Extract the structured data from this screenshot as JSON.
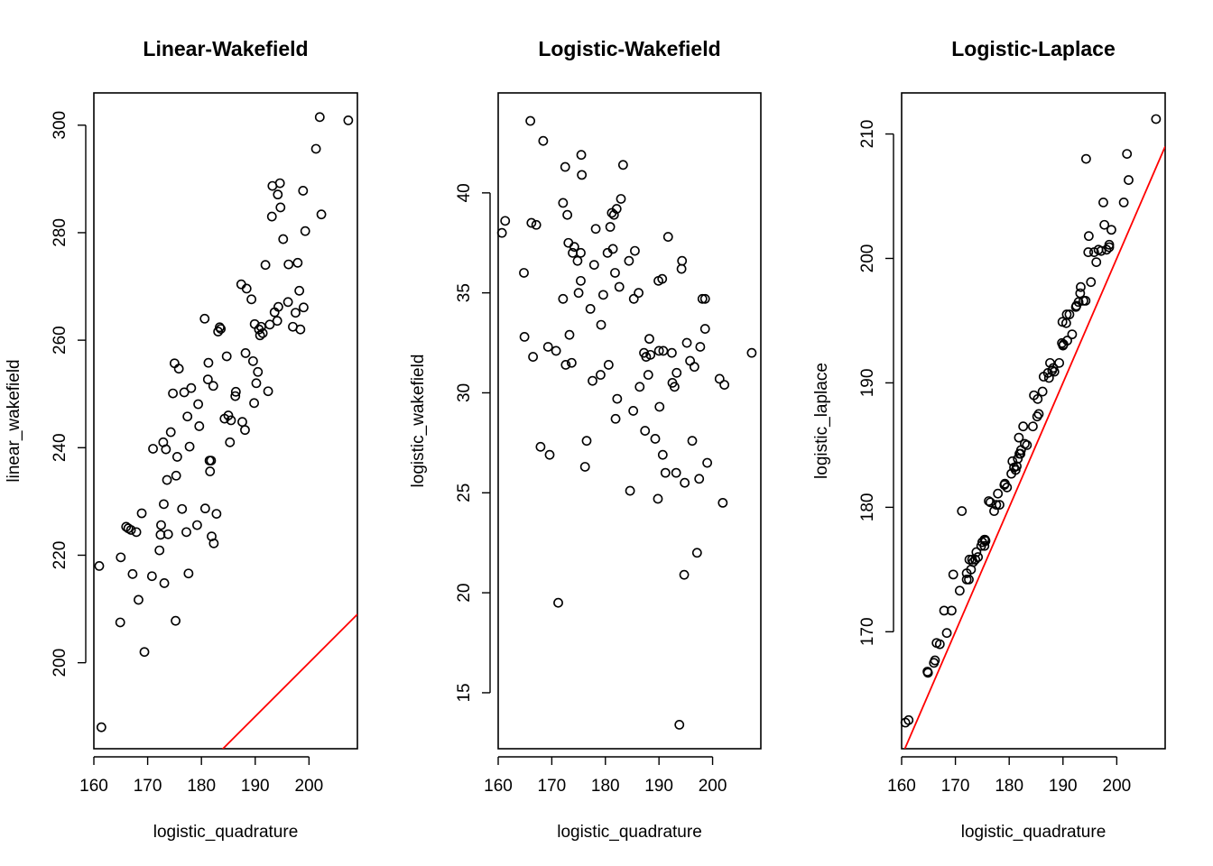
{
  "chart_data": [
    {
      "type": "scatter",
      "title": "Linear-Wakefield",
      "xlabel": "logistic_quadrature",
      "ylabel": "linear_wakefield",
      "xlim": [
        160,
        209
      ],
      "ylim": [
        184,
        306
      ],
      "xticks": [
        160,
        170,
        180,
        190,
        200
      ],
      "yticks": [
        200,
        220,
        240,
        260,
        280,
        300
      ],
      "reference_line": {
        "slope": 1,
        "intercept": 0,
        "color": "#ff0000"
      },
      "points": [
        [
          161.0,
          218.0
        ],
        [
          161.4,
          188.0
        ],
        [
          164.9,
          207.5
        ],
        [
          165.0,
          219.6
        ],
        [
          166.0,
          225.3
        ],
        [
          166.4,
          225.0
        ],
        [
          166.9,
          224.7
        ],
        [
          167.2,
          216.5
        ],
        [
          167.9,
          224.3
        ],
        [
          168.3,
          211.7
        ],
        [
          168.9,
          227.8
        ],
        [
          169.4,
          202.0
        ],
        [
          170.8,
          216.1
        ],
        [
          171.0,
          239.8
        ],
        [
          172.2,
          220.9
        ],
        [
          172.4,
          223.8
        ],
        [
          172.5,
          225.6
        ],
        [
          172.9,
          241.0
        ],
        [
          173.0,
          229.5
        ],
        [
          173.1,
          214.8
        ],
        [
          173.4,
          239.7
        ],
        [
          173.6,
          234.0
        ],
        [
          173.8,
          223.9
        ],
        [
          174.3,
          242.9
        ],
        [
          174.7,
          250.1
        ],
        [
          175.0,
          255.7
        ],
        [
          175.2,
          207.8
        ],
        [
          175.3,
          234.8
        ],
        [
          175.5,
          238.3
        ],
        [
          175.8,
          254.7
        ],
        [
          176.4,
          228.6
        ],
        [
          176.8,
          250.3
        ],
        [
          177.2,
          224.3
        ],
        [
          177.4,
          245.8
        ],
        [
          177.6,
          216.6
        ],
        [
          177.8,
          240.2
        ],
        [
          178.1,
          251.1
        ],
        [
          179.2,
          225.6
        ],
        [
          179.4,
          248.1
        ],
        [
          179.6,
          244.0
        ],
        [
          180.6,
          264.0
        ],
        [
          180.7,
          228.7
        ],
        [
          181.2,
          252.7
        ],
        [
          181.3,
          255.8
        ],
        [
          181.5,
          237.6
        ],
        [
          181.6,
          235.6
        ],
        [
          181.8,
          237.6
        ],
        [
          181.9,
          223.5
        ],
        [
          182.2,
          251.5
        ],
        [
          182.3,
          222.2
        ],
        [
          182.8,
          227.7
        ],
        [
          183.1,
          261.6
        ],
        [
          183.4,
          262.4
        ],
        [
          183.6,
          262.1
        ],
        [
          184.3,
          245.4
        ],
        [
          184.7,
          257.0
        ],
        [
          185.0,
          246.0
        ],
        [
          185.3,
          241.0
        ],
        [
          185.5,
          245.1
        ],
        [
          186.3,
          249.6
        ],
        [
          186.4,
          250.4
        ],
        [
          187.4,
          270.4
        ],
        [
          187.6,
          244.8
        ],
        [
          188.1,
          243.3
        ],
        [
          188.2,
          257.6
        ],
        [
          188.4,
          269.6
        ],
        [
          189.3,
          267.6
        ],
        [
          189.6,
          256.1
        ],
        [
          189.8,
          248.3
        ],
        [
          189.9,
          263.0
        ],
        [
          190.2,
          252.0
        ],
        [
          190.5,
          254.1
        ],
        [
          190.7,
          262.0
        ],
        [
          190.9,
          260.9
        ],
        [
          191.1,
          262.5
        ],
        [
          191.4,
          261.3
        ],
        [
          191.9,
          274.0
        ],
        [
          192.4,
          250.5
        ],
        [
          192.7,
          262.9
        ],
        [
          193.1,
          283.0
        ],
        [
          193.2,
          288.7
        ],
        [
          193.6,
          265.2
        ],
        [
          194.1,
          263.6
        ],
        [
          194.2,
          287.1
        ],
        [
          194.3,
          266.2
        ],
        [
          194.6,
          289.2
        ],
        [
          194.7,
          284.7
        ],
        [
          195.2,
          278.8
        ],
        [
          196.1,
          267.1
        ],
        [
          196.2,
          274.1
        ],
        [
          197.0,
          262.5
        ],
        [
          197.5,
          265.1
        ],
        [
          197.9,
          274.4
        ],
        [
          198.2,
          269.2
        ],
        [
          198.4,
          262.0
        ],
        [
          198.9,
          287.8
        ],
        [
          199.0,
          266.1
        ],
        [
          199.3,
          280.3
        ],
        [
          201.3,
          295.6
        ],
        [
          202.0,
          301.5
        ],
        [
          202.3,
          283.4
        ],
        [
          207.3,
          300.9
        ]
      ]
    },
    {
      "type": "scatter",
      "title": "Logistic-Wakefield",
      "xlabel": "logistic_quadrature",
      "ylabel": "logistic_wakefield",
      "xlim": [
        160,
        209
      ],
      "ylim": [
        12.2,
        45.0
      ],
      "xticks": [
        160,
        170,
        180,
        190,
        200
      ],
      "yticks": [
        15,
        20,
        25,
        30,
        35,
        40
      ],
      "points": [
        [
          160.7,
          38.0
        ],
        [
          161.3,
          38.6
        ],
        [
          164.8,
          36.0
        ],
        [
          164.9,
          32.8
        ],
        [
          166.0,
          43.6
        ],
        [
          166.2,
          38.5
        ],
        [
          166.5,
          31.8
        ],
        [
          167.1,
          38.4
        ],
        [
          167.9,
          27.3
        ],
        [
          168.4,
          42.6
        ],
        [
          169.3,
          32.3
        ],
        [
          169.6,
          26.9
        ],
        [
          170.8,
          32.1
        ],
        [
          171.2,
          19.5
        ],
        [
          172.1,
          34.7
        ],
        [
          172.1,
          39.5
        ],
        [
          172.5,
          41.3
        ],
        [
          172.6,
          31.4
        ],
        [
          172.9,
          38.9
        ],
        [
          173.1,
          37.5
        ],
        [
          173.3,
          32.9
        ],
        [
          173.7,
          31.5
        ],
        [
          173.9,
          37.0
        ],
        [
          174.2,
          37.3
        ],
        [
          174.8,
          36.6
        ],
        [
          175.0,
          35.0
        ],
        [
          175.4,
          35.6
        ],
        [
          175.4,
          37.0
        ],
        [
          175.5,
          41.9
        ],
        [
          175.6,
          40.9
        ],
        [
          176.2,
          26.3
        ],
        [
          176.5,
          27.6
        ],
        [
          177.2,
          34.2
        ],
        [
          177.6,
          30.6
        ],
        [
          177.9,
          36.4
        ],
        [
          178.2,
          38.2
        ],
        [
          179.1,
          30.9
        ],
        [
          179.2,
          33.4
        ],
        [
          179.6,
          34.9
        ],
        [
          180.4,
          37.0
        ],
        [
          180.6,
          31.4
        ],
        [
          180.9,
          38.3
        ],
        [
          181.2,
          39.0
        ],
        [
          181.4,
          37.2
        ],
        [
          181.6,
          38.9
        ],
        [
          181.8,
          36.0
        ],
        [
          181.9,
          28.7
        ],
        [
          182.1,
          39.2
        ],
        [
          182.2,
          29.7
        ],
        [
          182.6,
          35.3
        ],
        [
          182.9,
          39.7
        ],
        [
          183.3,
          41.4
        ],
        [
          184.4,
          36.6
        ],
        [
          184.6,
          25.1
        ],
        [
          185.2,
          29.1
        ],
        [
          185.3,
          34.7
        ],
        [
          185.5,
          37.1
        ],
        [
          186.2,
          35.0
        ],
        [
          186.4,
          30.3
        ],
        [
          187.2,
          32.0
        ],
        [
          187.4,
          28.1
        ],
        [
          187.6,
          31.8
        ],
        [
          188.0,
          30.9
        ],
        [
          188.2,
          32.7
        ],
        [
          188.4,
          31.9
        ],
        [
          189.3,
          27.7
        ],
        [
          189.8,
          24.7
        ],
        [
          189.9,
          35.6
        ],
        [
          190.0,
          32.1
        ],
        [
          190.1,
          29.3
        ],
        [
          190.6,
          35.7
        ],
        [
          190.7,
          26.9
        ],
        [
          190.8,
          32.1
        ],
        [
          191.2,
          26.0
        ],
        [
          191.7,
          37.8
        ],
        [
          192.4,
          32.0
        ],
        [
          192.5,
          30.5
        ],
        [
          192.9,
          30.3
        ],
        [
          193.2,
          26.0
        ],
        [
          193.3,
          31.0
        ],
        [
          193.8,
          13.4
        ],
        [
          194.2,
          36.2
        ],
        [
          194.3,
          36.6
        ],
        [
          194.7,
          20.9
        ],
        [
          194.8,
          25.5
        ],
        [
          195.2,
          32.5
        ],
        [
          195.8,
          31.6
        ],
        [
          196.2,
          27.6
        ],
        [
          196.6,
          31.3
        ],
        [
          197.1,
          22.0
        ],
        [
          197.5,
          25.7
        ],
        [
          197.7,
          32.3
        ],
        [
          198.1,
          34.7
        ],
        [
          198.6,
          34.7
        ],
        [
          198.6,
          33.2
        ],
        [
          199.0,
          26.5
        ],
        [
          201.3,
          30.7
        ],
        [
          201.9,
          24.5
        ],
        [
          202.2,
          30.4
        ],
        [
          207.3,
          32.0
        ]
      ]
    },
    {
      "type": "scatter",
      "title": "Logistic-Laplace",
      "xlabel": "logistic_quadrature",
      "ylabel": "logistic_laplace",
      "xlim": [
        160,
        209
      ],
      "ylim": [
        160.6,
        213.3
      ],
      "xticks": [
        160,
        170,
        180,
        190,
        200
      ],
      "yticks": [
        170,
        180,
        190,
        200,
        210
      ],
      "reference_line": {
        "slope": 1,
        "intercept": 0,
        "color": "#ff0000"
      },
      "points": [
        [
          160.7,
          162.7
        ],
        [
          161.3,
          162.9
        ],
        [
          164.8,
          166.8
        ],
        [
          164.9,
          166.7
        ],
        [
          166.0,
          167.5
        ],
        [
          166.2,
          167.7
        ],
        [
          166.5,
          169.1
        ],
        [
          167.1,
          169.0
        ],
        [
          167.9,
          171.7
        ],
        [
          168.4,
          169.9
        ],
        [
          169.3,
          171.7
        ],
        [
          169.6,
          174.6
        ],
        [
          170.8,
          173.3
        ],
        [
          171.2,
          179.7
        ],
        [
          172.1,
          174.7
        ],
        [
          172.1,
          174.2
        ],
        [
          172.5,
          174.2
        ],
        [
          172.6,
          175.8
        ],
        [
          172.9,
          175.0
        ],
        [
          173.1,
          175.8
        ],
        [
          173.3,
          175.6
        ],
        [
          173.7,
          175.8
        ],
        [
          173.9,
          176.4
        ],
        [
          174.2,
          176.0
        ],
        [
          174.8,
          176.9
        ],
        [
          175.0,
          177.2
        ],
        [
          175.4,
          177.4
        ],
        [
          175.4,
          176.9
        ],
        [
          175.5,
          177.4
        ],
        [
          175.6,
          177.3
        ],
        [
          176.2,
          180.5
        ],
        [
          176.5,
          180.4
        ],
        [
          177.2,
          179.7
        ],
        [
          177.6,
          180.2
        ],
        [
          177.9,
          181.1
        ],
        [
          178.2,
          180.2
        ],
        [
          179.1,
          181.8
        ],
        [
          179.2,
          181.9
        ],
        [
          179.6,
          181.6
        ],
        [
          180.4,
          182.7
        ],
        [
          180.6,
          183.7
        ],
        [
          180.9,
          183.2
        ],
        [
          181.2,
          183.0
        ],
        [
          181.4,
          183.3
        ],
        [
          181.6,
          183.9
        ],
        [
          181.8,
          185.6
        ],
        [
          181.9,
          184.3
        ],
        [
          182.1,
          184.3
        ],
        [
          182.2,
          184.6
        ],
        [
          182.6,
          186.5
        ],
        [
          182.9,
          185.1
        ],
        [
          183.3,
          185.0
        ],
        [
          184.4,
          186.5
        ],
        [
          184.6,
          189.0
        ],
        [
          185.2,
          187.3
        ],
        [
          185.3,
          188.7
        ],
        [
          185.5,
          187.5
        ],
        [
          186.2,
          189.3
        ],
        [
          186.4,
          190.5
        ],
        [
          187.2,
          190.8
        ],
        [
          187.4,
          190.4
        ],
        [
          187.6,
          191.6
        ],
        [
          188.0,
          191.0
        ],
        [
          188.2,
          191.2
        ],
        [
          188.4,
          190.9
        ],
        [
          189.3,
          191.6
        ],
        [
          189.8,
          193.2
        ],
        [
          189.9,
          194.9
        ],
        [
          190.0,
          193.0
        ],
        [
          190.1,
          193.1
        ],
        [
          190.6,
          194.8
        ],
        [
          190.7,
          195.5
        ],
        [
          190.8,
          193.4
        ],
        [
          191.2,
          195.5
        ],
        [
          191.7,
          193.9
        ],
        [
          192.4,
          196.1
        ],
        [
          192.5,
          196.2
        ],
        [
          192.9,
          196.5
        ],
        [
          193.2,
          197.2
        ],
        [
          193.3,
          197.7
        ],
        [
          193.8,
          196.6
        ],
        [
          194.2,
          196.6
        ],
        [
          194.3,
          208.0
        ],
        [
          194.7,
          200.5
        ],
        [
          194.8,
          201.8
        ],
        [
          195.2,
          198.1
        ],
        [
          195.8,
          200.5
        ],
        [
          196.2,
          199.7
        ],
        [
          196.6,
          200.7
        ],
        [
          197.1,
          200.6
        ],
        [
          197.5,
          204.5
        ],
        [
          197.7,
          202.7
        ],
        [
          198.1,
          200.7
        ],
        [
          198.6,
          200.9
        ],
        [
          198.6,
          201.1
        ],
        [
          199.0,
          202.3
        ],
        [
          201.3,
          204.5
        ],
        [
          201.9,
          208.4
        ],
        [
          202.2,
          206.3
        ],
        [
          207.3,
          211.2
        ]
      ]
    }
  ]
}
